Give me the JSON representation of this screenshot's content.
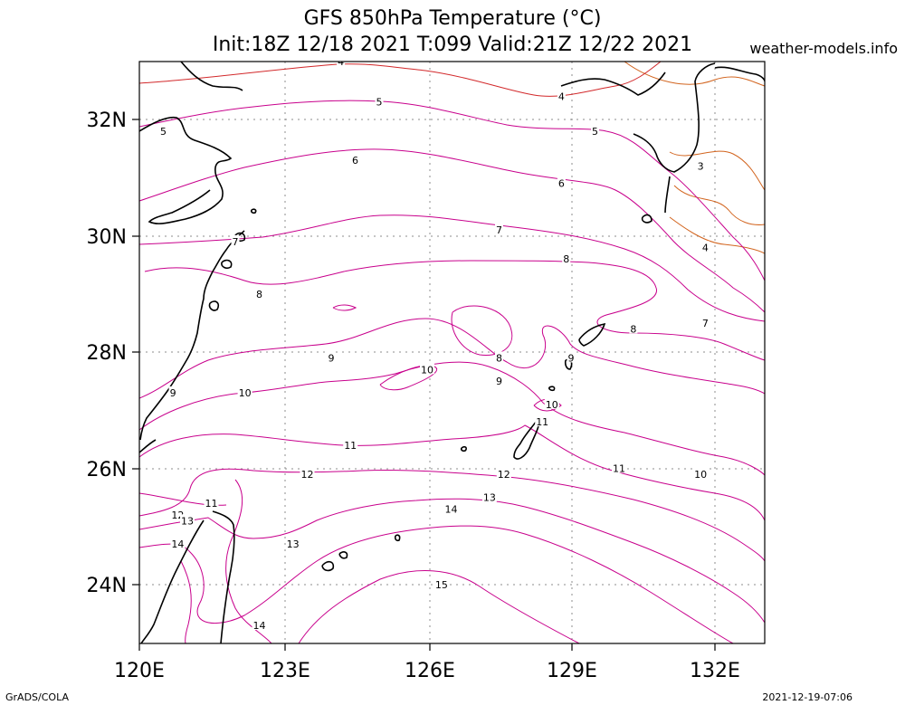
{
  "header": {
    "title_line1": "GFS 850hPa Temperature (°C)",
    "title_line2": "Init:18Z 12/18 2021 T:099 Valid:21Z 12/22 2021",
    "site": "weather-models.info"
  },
  "footer": {
    "software": "GrADS/COLA",
    "generated": "2021-12-19-07:06"
  },
  "colors": {
    "contour_main": "#c8008c",
    "contour_warm_edge": "#d2282a",
    "contour_cold": "#d2641e",
    "coastline": "#000000",
    "grid": "#8c8c8c"
  },
  "axes": {
    "lon_labels": [
      "120E",
      "123E",
      "126E",
      "129E",
      "132E"
    ],
    "lat_labels": [
      "32N",
      "30N",
      "28N",
      "26N",
      "24N"
    ]
  },
  "contour_labels": [
    {
      "text": "4",
      "lon": 124.2,
      "lat": 33.0
    },
    {
      "text": "5",
      "lon": 125.0,
      "lat": 32.3
    },
    {
      "text": "5",
      "lon": 120.5,
      "lat": 31.8
    },
    {
      "text": "4",
      "lon": 128.8,
      "lat": 32.4
    },
    {
      "text": "5",
      "lon": 129.5,
      "lat": 31.8
    },
    {
      "text": "6",
      "lon": 124.5,
      "lat": 31.3
    },
    {
      "text": "6",
      "lon": 128.8,
      "lat": 30.9
    },
    {
      "text": "3",
      "lon": 131.7,
      "lat": 31.2
    },
    {
      "text": "7",
      "lon": 127.5,
      "lat": 30.1
    },
    {
      "text": "7",
      "lon": 122.0,
      "lat": 29.9
    },
    {
      "text": "4",
      "lon": 131.8,
      "lat": 29.8
    },
    {
      "text": "8",
      "lon": 128.9,
      "lat": 29.6
    },
    {
      "text": "8",
      "lon": 122.5,
      "lat": 29.0
    },
    {
      "text": "7",
      "lon": 131.8,
      "lat": 28.5
    },
    {
      "text": "8",
      "lon": 130.3,
      "lat": 28.4
    },
    {
      "text": "9",
      "lon": 124.0,
      "lat": 27.9
    },
    {
      "text": "8",
      "lon": 127.5,
      "lat": 27.9
    },
    {
      "text": "9",
      "lon": 129.0,
      "lat": 27.9
    },
    {
      "text": "10",
      "lon": 126.0,
      "lat": 27.7
    },
    {
      "text": "9",
      "lon": 127.5,
      "lat": 27.5
    },
    {
      "text": "10",
      "lon": 122.2,
      "lat": 27.3
    },
    {
      "text": "9",
      "lon": 120.7,
      "lat": 27.3
    },
    {
      "text": "10",
      "lon": 128.6,
      "lat": 27.1
    },
    {
      "text": "11",
      "lon": 128.4,
      "lat": 26.8
    },
    {
      "text": "11",
      "lon": 124.4,
      "lat": 26.4
    },
    {
      "text": "12",
      "lon": 123.5,
      "lat": 25.9
    },
    {
      "text": "11",
      "lon": 130.0,
      "lat": 26.0
    },
    {
      "text": "12",
      "lon": 127.6,
      "lat": 25.9
    },
    {
      "text": "10",
      "lon": 131.7,
      "lat": 25.9
    },
    {
      "text": "13",
      "lon": 127.3,
      "lat": 25.5
    },
    {
      "text": "11",
      "lon": 121.5,
      "lat": 25.4
    },
    {
      "text": "14",
      "lon": 126.5,
      "lat": 25.3
    },
    {
      "text": "12",
      "lon": 120.8,
      "lat": 25.2
    },
    {
      "text": "13",
      "lon": 121.0,
      "lat": 25.1
    },
    {
      "text": "14",
      "lon": 120.8,
      "lat": 24.7
    },
    {
      "text": "13",
      "lon": 123.2,
      "lat": 24.7
    },
    {
      "text": "15",
      "lon": 126.3,
      "lat": 24.0
    },
    {
      "text": "14",
      "lon": 122.5,
      "lat": 23.3
    }
  ]
}
